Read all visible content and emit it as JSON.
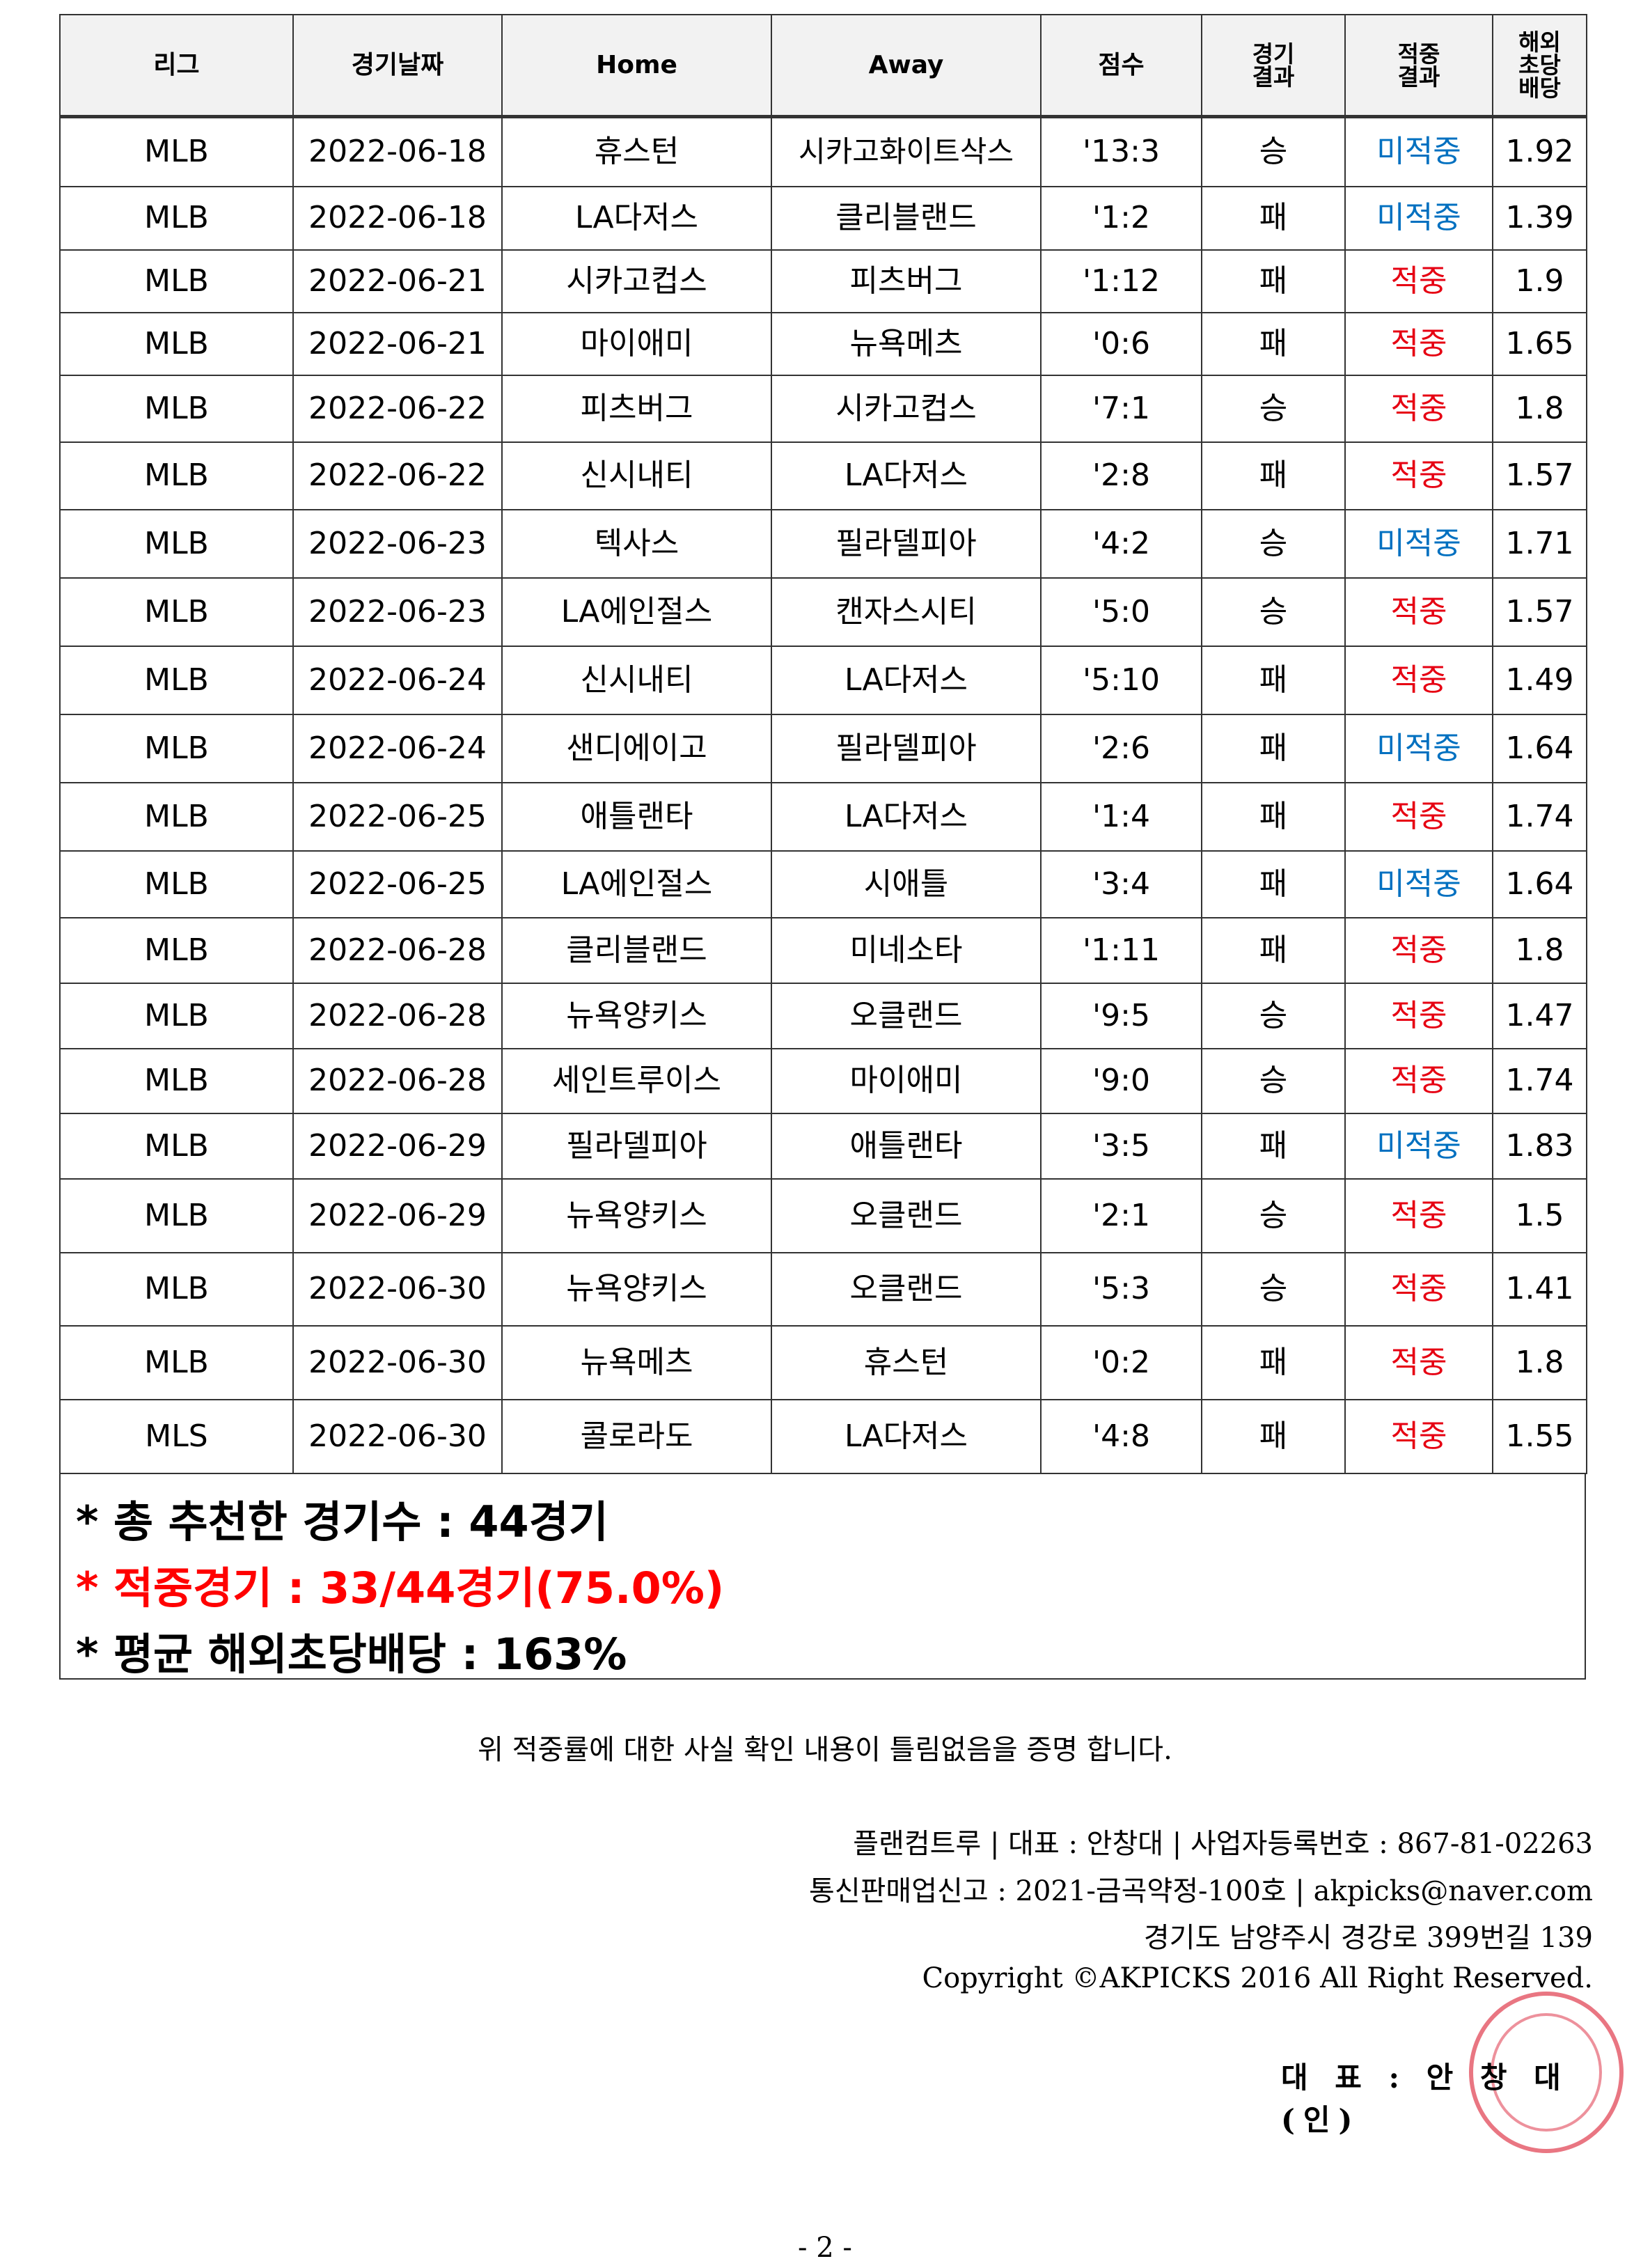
{
  "table": {
    "headers": [
      "리그",
      "경기날짜",
      "Home",
      "Away",
      "점수",
      "경기\n결과",
      "적중\n결과",
      "해외\n초당\n배당"
    ],
    "rows": [
      [
        "MLB",
        "2022-06-18",
        "휴스턴",
        "시카고화이트삭스",
        "'13:3",
        "승",
        "미적중",
        "1.92"
      ],
      [
        "MLB",
        "2022-06-18",
        "LA다저스",
        "클리블랜드",
        "'1:2",
        "패",
        "미적중",
        "1.39"
      ],
      [
        "MLB",
        "2022-06-21",
        "시카고컵스",
        "피츠버그",
        "'1:12",
        "패",
        "적중",
        "1.9"
      ],
      [
        "MLB",
        "2022-06-21",
        "마이애미",
        "뉴욕메츠",
        "'0:6",
        "패",
        "적중",
        "1.65"
      ],
      [
        "MLB",
        "2022-06-22",
        "피츠버그",
        "시카고컵스",
        "'7:1",
        "승",
        "적중",
        "1.8"
      ],
      [
        "MLB",
        "2022-06-22",
        "신시내티",
        "LA다저스",
        "'2:8",
        "패",
        "적중",
        "1.57"
      ],
      [
        "MLB",
        "2022-06-23",
        "텍사스",
        "필라델피아",
        "'4:2",
        "승",
        "미적중",
        "1.71"
      ],
      [
        "MLB",
        "2022-06-23",
        "LA에인절스",
        "캔자스시티",
        "'5:0",
        "승",
        "적중",
        "1.57"
      ],
      [
        "MLB",
        "2022-06-24",
        "신시내티",
        "LA다저스",
        "'5:10",
        "패",
        "적중",
        "1.49"
      ],
      [
        "MLB",
        "2022-06-24",
        "샌디에이고",
        "필라델피아",
        "'2:6",
        "패",
        "미적중",
        "1.64"
      ],
      [
        "MLB",
        "2022-06-25",
        "애틀랜타",
        "LA다저스",
        "'1:4",
        "패",
        "적중",
        "1.74"
      ],
      [
        "MLB",
        "2022-06-25",
        "LA에인절스",
        "시애틀",
        "'3:4",
        "패",
        "미적중",
        "1.64"
      ],
      [
        "MLB",
        "2022-06-28",
        "클리블랜드",
        "미네소타",
        "'1:11",
        "패",
        "적중",
        "1.8"
      ],
      [
        "MLB",
        "2022-06-28",
        "뉴욕양키스",
        "오클랜드",
        "'9:5",
        "승",
        "적중",
        "1.47"
      ],
      [
        "MLB",
        "2022-06-28",
        "세인트루이스",
        "마이애미",
        "'9:0",
        "승",
        "적중",
        "1.74"
      ],
      [
        "MLB",
        "2022-06-29",
        "필라델피아",
        "애틀랜타",
        "'3:5",
        "패",
        "미적중",
        "1.83"
      ],
      [
        "MLB",
        "2022-06-29",
        "뉴욕양키스",
        "오클랜드",
        "'2:1",
        "승",
        "적중",
        "1.5"
      ],
      [
        "MLB",
        "2022-06-30",
        "뉴욕양키스",
        "오클랜드",
        "'5:3",
        "승",
        "적중",
        "1.41"
      ],
      [
        "MLB",
        "2022-06-30",
        "뉴욕메츠",
        "휴스턴",
        "'0:2",
        "패",
        "적중",
        "1.8"
      ],
      [
        "MLS",
        "2022-06-30",
        "콜로라도",
        "LA다저스",
        "'4:8",
        "패",
        "적중",
        "1.55"
      ]
    ]
  },
  "summary": {
    "total": "* 총 추천한 경기수 : 44경기",
    "hits": "* 적중경기 : 33/44경기(75.0%)",
    "avg": "* 평균 해외초당배당 : 163%"
  },
  "statement": "위 적중률에 대한 사실 확인 내용이 틀림없음을 증명 합니다.",
  "footer": [
    "플랜컴트루 | 대표 : 안창대 | 사업자등록번호 : 867-81-02263",
    "통신판매업신고 : 2021-금곡약정-100호 | akpicks@naver.com",
    "경기도 남양주시 경강로 399번길 139",
    "Copyright ©AKPICKS 2016 All Right Reserved."
  ],
  "signature": "대 표 : 안 창 대 (인)",
  "page_number": "- 2 -",
  "colors": {
    "hit": "#e60012",
    "miss": "#0070c0",
    "summary_red": "#ff0000"
  }
}
